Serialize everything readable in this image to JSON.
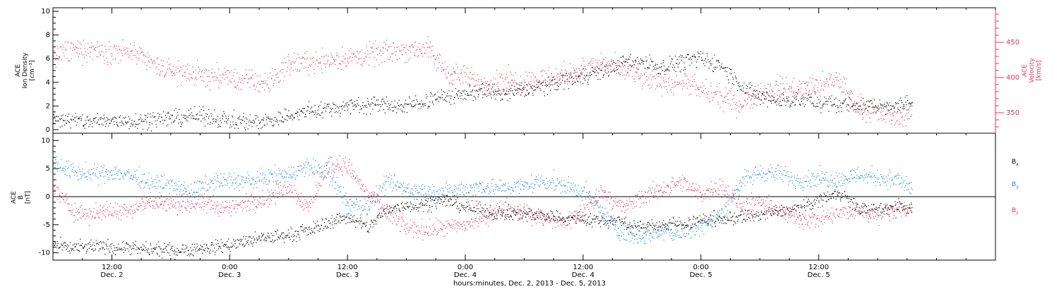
{
  "chart_data": [
    {
      "type": "scatter",
      "panel": "top",
      "ylabel_left": [
        "ACE",
        "Ion Density",
        "[cm⁻³]"
      ],
      "ylabel_right": [
        "ACE",
        "Velocity",
        "[km/s]"
      ],
      "ylim_left": [
        -0.3,
        10.3
      ],
      "ylim_right": [
        321,
        499
      ],
      "yticks_left": [
        "0",
        "2",
        "4",
        "6",
        "8",
        "10"
      ],
      "yticks_right": [
        "350",
        "400",
        "450"
      ],
      "colors": {
        "density": "#000000",
        "velocity": "#e8335f"
      },
      "series": [
        {
          "name": "Ion Density",
          "axis": "left",
          "color": "#000000",
          "x_hours": [
            0,
            2,
            4,
            6,
            8,
            10,
            12,
            14,
            16,
            18,
            20,
            22,
            24,
            26,
            28,
            30,
            32,
            34,
            36,
            38,
            40,
            42,
            44,
            46,
            48,
            50,
            52,
            54,
            56,
            58,
            60,
            62,
            64,
            66,
            68,
            70,
            72,
            74,
            76,
            78,
            80,
            82,
            84,
            86,
            87.5
          ],
          "y": [
            1.0,
            0.8,
            0.7,
            0.8,
            0.8,
            0.9,
            1.0,
            1.2,
            1.1,
            0.8,
            0.7,
            0.8,
            1.2,
            1.6,
            1.8,
            2.0,
            2.2,
            2.1,
            2.0,
            2.5,
            2.8,
            3.1,
            3.3,
            3.0,
            3.4,
            3.7,
            4.2,
            4.6,
            5.0,
            5.6,
            5.8,
            5.3,
            5.8,
            6.0,
            5.5,
            3.8,
            2.7,
            2.5,
            2.6,
            2.3,
            2.2,
            2.0,
            2.0,
            2.1,
            2.2
          ]
        },
        {
          "name": "Velocity",
          "axis": "right",
          "color": "#e8335f",
          "x_hours": [
            0,
            2,
            4,
            6,
            8,
            10,
            12,
            14,
            16,
            18,
            20,
            22,
            24,
            26,
            28,
            30,
            32,
            34,
            36,
            38,
            40,
            42,
            44,
            46,
            48,
            50,
            52,
            54,
            56,
            58,
            60,
            62,
            64,
            66,
            68,
            70,
            72,
            74,
            76,
            78,
            80,
            82,
            84,
            86,
            87.5
          ],
          "y": [
            432,
            438,
            440,
            438,
            436,
            420,
            410,
            406,
            402,
            400,
            395,
            392,
            420,
            422,
            426,
            428,
            432,
            436,
            440,
            442,
            410,
            400,
            392,
            398,
            395,
            400,
            405,
            412,
            420,
            412,
            398,
            392,
            396,
            382,
            372,
            363,
            380,
            385,
            385,
            388,
            398,
            360,
            350,
            346,
            352
          ]
        }
      ]
    },
    {
      "type": "scatter",
      "panel": "bottom",
      "ylabel_left": [
        "ACE",
        "B",
        "[nT]"
      ],
      "ylim": [
        -11.3,
        11.3
      ],
      "yticks": [
        "-10",
        "-5",
        "0",
        "5",
        "10"
      ],
      "zero_line": true,
      "legend_position": "right",
      "legend": [
        {
          "base": "B",
          "sub": "x",
          "color": "#000000"
        },
        {
          "base": "B",
          "sub": "y",
          "color": "#1e88e5"
        },
        {
          "base": "B",
          "sub": "z",
          "color": "#e8335f"
        }
      ],
      "series": [
        {
          "name": "Bx",
          "color": "#000000",
          "x_hours": [
            0,
            2,
            4,
            6,
            8,
            10,
            12,
            14,
            16,
            18,
            20,
            22,
            24,
            26,
            28,
            30,
            32,
            34,
            36,
            38,
            40,
            42,
            44,
            46,
            48,
            50,
            52,
            54,
            56,
            58,
            60,
            62,
            64,
            66,
            68,
            70,
            72,
            74,
            76,
            78,
            80,
            82,
            84,
            86,
            87.5
          ],
          "y": [
            -8.5,
            -9.2,
            -8.8,
            -8.9,
            -9.2,
            -9.4,
            -9.5,
            -9.3,
            -9.0,
            -8.5,
            -7.8,
            -7.2,
            -6.8,
            -6.0,
            -4.5,
            -3.5,
            -5.5,
            -2.2,
            -1.5,
            -1.2,
            -0.5,
            -1.8,
            -2.5,
            -3.0,
            -2.8,
            -3.2,
            -3.8,
            -4.0,
            -4.2,
            -4.5,
            -5.5,
            -5.0,
            -4.8,
            -4.2,
            -4.0,
            -3.6,
            -3.2,
            -2.6,
            -2.0,
            -0.5,
            1.0,
            -2.0,
            -2.5,
            -1.5,
            -2.0
          ]
        },
        {
          "name": "By",
          "color": "#1e88e5",
          "x_hours": [
            0,
            2,
            4,
            6,
            8,
            10,
            12,
            14,
            16,
            18,
            20,
            22,
            24,
            26,
            28,
            30,
            32,
            34,
            36,
            38,
            40,
            42,
            44,
            46,
            48,
            50,
            52,
            54,
            56,
            58,
            60,
            62,
            64,
            66,
            68,
            70,
            72,
            74,
            76,
            78,
            80,
            82,
            84,
            86,
            87.5
          ],
          "y": [
            6.0,
            4.5,
            4.0,
            4.5,
            3.8,
            2.5,
            2.0,
            1.0,
            2.5,
            3.0,
            2.8,
            3.5,
            4.0,
            5.5,
            4.0,
            -1.0,
            -2.0,
            2.5,
            1.5,
            1.0,
            1.0,
            1.5,
            2.0,
            1.5,
            2.0,
            3.0,
            2.0,
            1.0,
            -3.0,
            -6.5,
            -7.0,
            -6.0,
            -6.5,
            -5.0,
            -3.0,
            2.5,
            4.5,
            4.0,
            3.0,
            3.5,
            3.0,
            4.0,
            3.5,
            3.0,
            1.5
          ]
        },
        {
          "name": "Bz",
          "color": "#e8335f",
          "x_hours": [
            0,
            2,
            4,
            6,
            8,
            10,
            12,
            14,
            16,
            18,
            20,
            22,
            24,
            26,
            28,
            30,
            32,
            34,
            36,
            38,
            40,
            42,
            44,
            46,
            48,
            50,
            52,
            54,
            56,
            58,
            60,
            62,
            64,
            66,
            68,
            70,
            72,
            74,
            76,
            78,
            80,
            82,
            84,
            86,
            87.5
          ],
          "y": [
            2.0,
            -2.5,
            -3.0,
            -2.5,
            -2.0,
            -1.0,
            -1.5,
            -1.2,
            -1.5,
            -2.0,
            -1.0,
            0.0,
            2.0,
            -2.0,
            6.0,
            5.5,
            0.5,
            -3.0,
            -5.5,
            -5.8,
            -5.5,
            -5.0,
            -3.5,
            -2.0,
            -3.0,
            -4.0,
            -4.5,
            -2.5,
            1.0,
            -2.0,
            0.0,
            1.5,
            2.5,
            0.5,
            2.0,
            -1.5,
            -1.0,
            -2.5,
            -4.0,
            -4.0,
            -3.0,
            -2.5,
            -3.0,
            -2.0,
            -2.5
          ]
        }
      ]
    }
  ],
  "x_axis": {
    "range_hours": [
      0,
      96
    ],
    "ticks": [
      {
        "t": 6,
        "label": "12:00",
        "date": "Dec. 2"
      },
      {
        "t": 18,
        "label": "0:00",
        "date": "Dec. 3"
      },
      {
        "t": 30,
        "label": "12:00",
        "date": "Dec. 3"
      },
      {
        "t": 42,
        "label": "0:00",
        "date": "Dec. 4"
      },
      {
        "t": 54,
        "label": "12:00",
        "date": "Dec. 4"
      },
      {
        "t": 66,
        "label": "0:00",
        "date": "Dec. 5"
      },
      {
        "t": 78,
        "label": "12:00",
        "date": "Dec. 5"
      }
    ],
    "xlabel": "hours:minutes, Dec.  2, 2013 - Dec.  5, 2013"
  }
}
